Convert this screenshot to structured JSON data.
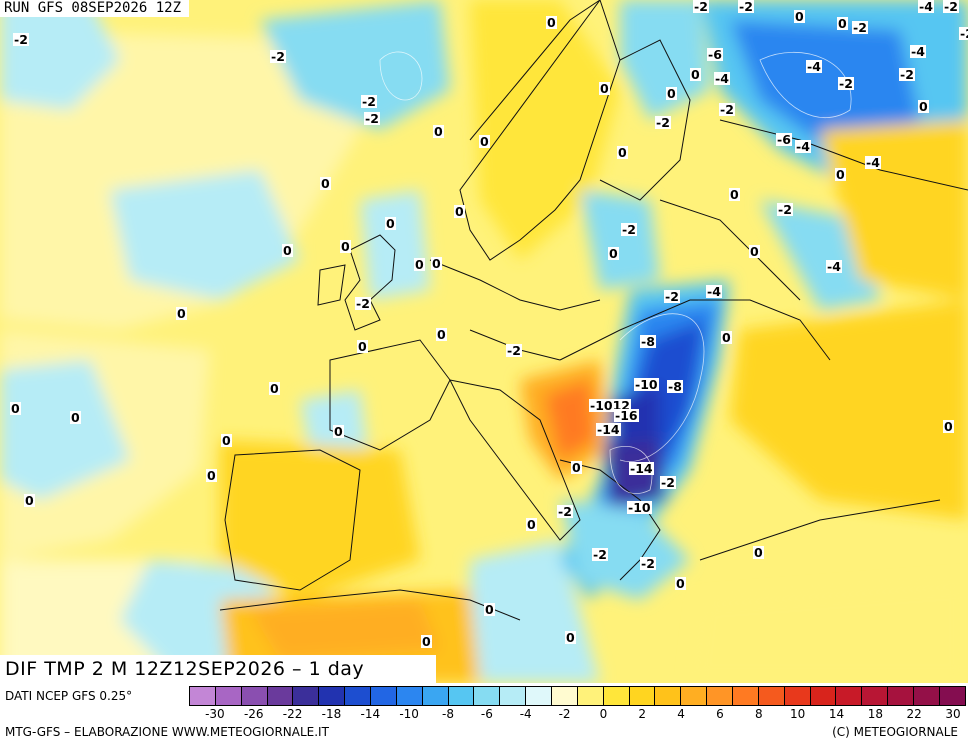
{
  "header": {
    "run_title": "RUN GFS 08SEP2026 12Z"
  },
  "map": {
    "title": "DIF TMP 2 M 12Z12SEP2026 – 1 day",
    "labels": [
      {
        "text": "-2"
      },
      {
        "text": "-2"
      },
      {
        "text": "-2"
      },
      {
        "text": "-2"
      },
      {
        "text": "0"
      },
      {
        "text": "0"
      },
      {
        "text": "0"
      },
      {
        "text": "0"
      },
      {
        "text": "0"
      },
      {
        "text": "0"
      },
      {
        "text": "0"
      },
      {
        "text": "0"
      },
      {
        "text": "0"
      },
      {
        "text": "-2"
      },
      {
        "text": "0"
      },
      {
        "text": "0"
      },
      {
        "text": "0"
      },
      {
        "text": "0"
      },
      {
        "text": "0"
      },
      {
        "text": "0"
      },
      {
        "text": "0"
      },
      {
        "text": "0"
      },
      {
        "text": "0"
      },
      {
        "text": "0"
      },
      {
        "text": "0"
      },
      {
        "text": "0"
      },
      {
        "text": "0"
      },
      {
        "text": "-2"
      },
      {
        "text": "0"
      },
      {
        "text": "-2"
      },
      {
        "text": "0"
      },
      {
        "text": "-2"
      },
      {
        "text": "0"
      },
      {
        "text": "0"
      },
      {
        "text": "-2"
      },
      {
        "text": "0"
      },
      {
        "text": "0"
      },
      {
        "text": "-2"
      },
      {
        "text": "-2"
      },
      {
        "text": "-4"
      },
      {
        "text": "-8"
      },
      {
        "text": "0"
      },
      {
        "text": "-10"
      },
      {
        "text": "-8"
      },
      {
        "text": "-1012"
      },
      {
        "text": "-16"
      },
      {
        "text": "-14"
      },
      {
        "text": "-14"
      },
      {
        "text": "-2"
      },
      {
        "text": "-10"
      },
      {
        "text": "0"
      },
      {
        "text": "-2"
      },
      {
        "text": "0"
      },
      {
        "text": "-2"
      },
      {
        "text": "-2"
      },
      {
        "text": "0"
      },
      {
        "text": "0"
      },
      {
        "text": "0"
      },
      {
        "text": "-6"
      },
      {
        "text": "-4"
      },
      {
        "text": "-2"
      },
      {
        "text": "-4"
      },
      {
        "text": "-2"
      },
      {
        "text": "-2"
      },
      {
        "text": "-6"
      },
      {
        "text": "-4"
      },
      {
        "text": "-4"
      },
      {
        "text": "0"
      },
      {
        "text": "-4"
      },
      {
        "text": "-2"
      },
      {
        "text": "-4"
      },
      {
        "text": "0"
      },
      {
        "text": "-2"
      },
      {
        "text": "0"
      },
      {
        "text": "-2"
      },
      {
        "text": "-4"
      },
      {
        "text": "-2"
      },
      {
        "text": "0"
      },
      {
        "text": "0"
      },
      {
        "text": "0"
      }
    ]
  },
  "legend": {
    "data_source": "DATI NCEP GFS 0.25°",
    "ticks": [
      "-30",
      "-26",
      "-22",
      "-18",
      "-14",
      "-10",
      "-8",
      "-6",
      "-4",
      "-2",
      "0",
      "2",
      "4",
      "6",
      "8",
      "10",
      "14",
      "18",
      "22",
      "30"
    ],
    "colors": [
      "#c386d6",
      "#a866c4",
      "#8a4fb0",
      "#6a3a9c",
      "#3b2f9a",
      "#2233b0",
      "#1d4ed0",
      "#2266e4",
      "#2c86f0",
      "#3aa6f2",
      "#56c6f2",
      "#86dcf2",
      "#b6ecf6",
      "#dff8fa",
      "#fffbd0",
      "#fff27a",
      "#ffe63a",
      "#ffd520",
      "#ffc21a",
      "#ffae22",
      "#ff9526",
      "#ff7a22",
      "#f55a1e",
      "#e8391c",
      "#d8241c",
      "#c81a28",
      "#b81634",
      "#a6123e",
      "#941048",
      "#840d50"
    ]
  },
  "footer": {
    "left": "MTG-GFS – ELABORAZIONE WWW.METEOGIORNALE.IT",
    "right": "(C) METEOGIORNALE"
  }
}
